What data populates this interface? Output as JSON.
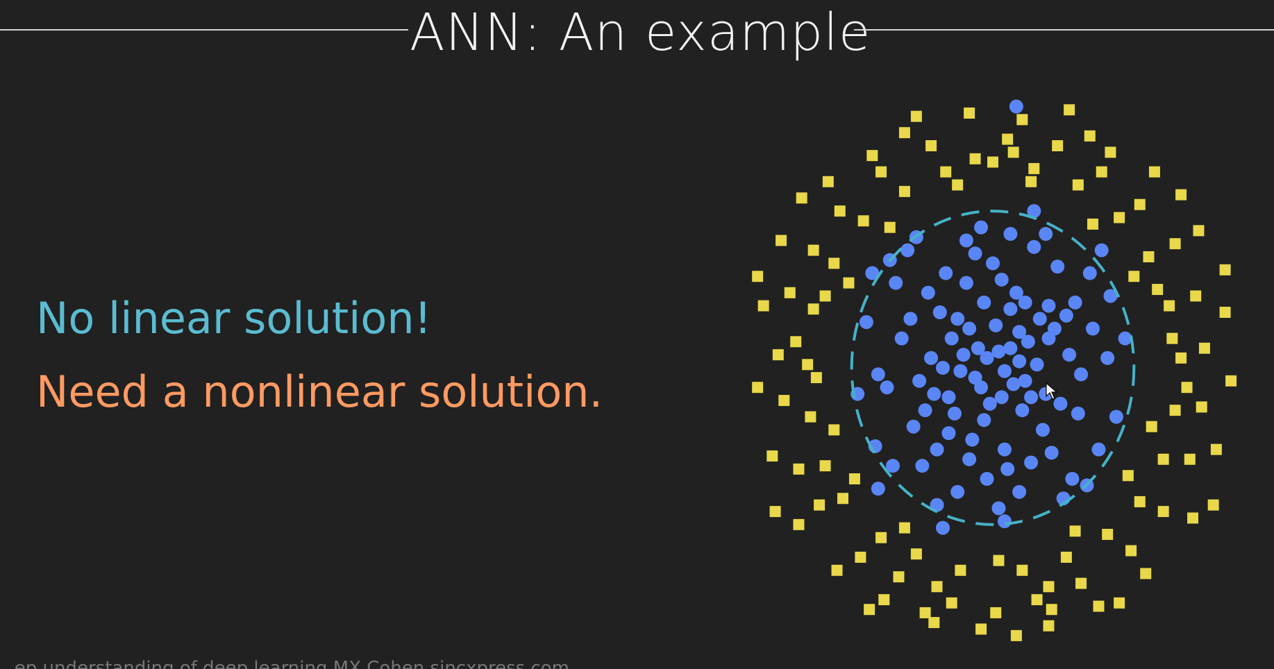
{
  "slide": {
    "title": "ANN: An example",
    "line1": "No linear solution!",
    "line2": "Need a nonlinear solution.",
    "footer": "...ep understanding of deep learning    MX Cohen    sincxpress.com"
  },
  "colors": {
    "background": "#212121",
    "title": "#f2f2f2",
    "line1": "#5bbcd1",
    "line2": "#ff9a62",
    "class_inner": "#5a86f5",
    "class_outer": "#e8d84a",
    "boundary": "#46b2c8"
  },
  "icons": {
    "cursor": "mouse-pointer-icon"
  },
  "chart_data": {
    "type": "scatter",
    "grid": false,
    "legend": "none",
    "xlim": [
      -8.5,
      8.5
    ],
    "ylim": [
      -8.5,
      8.5
    ],
    "boundary": {
      "shape": "circle",
      "center": [
        0,
        0
      ],
      "radius": 4.8,
      "style": "dashed"
    },
    "series": [
      {
        "marker": "circle",
        "color": "#5a86f5",
        "points": [
          [
            0.2,
            0.5
          ],
          [
            -0.8,
            1.2
          ],
          [
            1.1,
            -0.4
          ],
          [
            -1.5,
            -0.9
          ],
          [
            0.6,
            1.8
          ],
          [
            -0.3,
            -1.6
          ],
          [
            1.9,
            0.9
          ],
          [
            -2.1,
            0.3
          ],
          [
            2.3,
            -1.1
          ],
          [
            -0.9,
            2.6
          ],
          [
            0.4,
            -2.5
          ],
          [
            -2.7,
            -1.8
          ],
          [
            2.8,
            2.0
          ],
          [
            -1.6,
            2.9
          ],
          [
            1.3,
            -2.9
          ],
          [
            -3.1,
            0.9
          ],
          [
            3.0,
            -0.2
          ],
          [
            0.0,
            3.2
          ],
          [
            -0.2,
            -3.4
          ],
          [
            -2.4,
            -3.0
          ],
          [
            2.2,
            3.1
          ],
          [
            3.4,
            1.2
          ],
          [
            -3.6,
            -0.6
          ],
          [
            1.4,
            3.7
          ],
          [
            -1.2,
            -3.8
          ],
          [
            3.6,
            -2.5
          ],
          [
            -3.3,
            2.6
          ],
          [
            0.9,
            0.2
          ],
          [
            -0.5,
            0.6
          ],
          [
            0.3,
            -0.9
          ],
          [
            -1.1,
            -0.1
          ],
          [
            1.6,
            1.5
          ],
          [
            -1.8,
            1.7
          ],
          [
            1.7,
            -1.9
          ],
          [
            -0.7,
            -2.2
          ],
          [
            0.8,
            2.3
          ],
          [
            2.6,
            0.4
          ],
          [
            -2.5,
            -0.4
          ],
          [
            0.1,
            1.3
          ],
          [
            -0.3,
            2.0
          ],
          [
            1.0,
            -1.3
          ],
          [
            -1.3,
            -1.4
          ],
          [
            2.0,
            -2.6
          ],
          [
            -2.2,
            2.3
          ],
          [
            2.5,
            1.6
          ],
          [
            -1.9,
            -2.5
          ],
          [
            0.5,
            -3.1
          ],
          [
            -0.6,
            3.5
          ],
          [
            3.9,
            0.3
          ],
          [
            -3.9,
            -0.2
          ],
          [
            0.2,
            -4.3
          ],
          [
            -0.4,
            4.3
          ],
          [
            2.7,
            -3.4
          ],
          [
            -2.9,
            3.6
          ],
          [
            3.3,
            2.9
          ],
          [
            -3.4,
            -3.0
          ],
          [
            1.2,
            0.8
          ],
          [
            -1.0,
            0.4
          ],
          [
            0.7,
            -0.5
          ],
          [
            -0.4,
            -0.6
          ],
          [
            1.5,
            0.1
          ],
          [
            -1.4,
            0.9
          ],
          [
            0.9,
            1.1
          ],
          [
            -0.1,
            -1.1
          ],
          [
            2.1,
            1.2
          ],
          [
            -2.3,
            -1.3
          ],
          [
            1.8,
            -0.8
          ],
          [
            -1.7,
            0.0
          ],
          [
            0.3,
            2.7
          ],
          [
            -0.8,
            -2.8
          ],
          [
            2.9,
            -1.4
          ],
          [
            -2.8,
            1.5
          ],
          [
            1.1,
            2.0
          ],
          [
            -1.5,
            -2.0
          ],
          [
            4.2,
            -1.5
          ],
          [
            -4.3,
            1.4
          ],
          [
            1.8,
            4.1
          ],
          [
            -1.9,
            -4.2
          ],
          [
            4.0,
            2.2
          ],
          [
            -4.0,
            -2.4
          ],
          [
            0.9,
            -3.8
          ],
          [
            -0.9,
            3.9
          ],
          [
            3.2,
            -3.6
          ],
          [
            -3.5,
            3.3
          ],
          [
            0.6,
            4.1
          ],
          [
            2.4,
            -4.0
          ],
          [
            -2.6,
            4.0
          ],
          [
            4.5,
            0.9
          ],
          [
            -4.6,
            -0.8
          ],
          [
            0.4,
            -4.7
          ],
          [
            -3.9,
            -3.7
          ],
          [
            3.7,
            3.6
          ],
          [
            -4.1,
            2.9
          ],
          [
            1.4,
            4.8
          ],
          [
            -1.7,
            -4.9
          ],
          [
            0.8,
            8.0
          ],
          [
            0.4,
            -0.1
          ],
          [
            -0.2,
            0.3
          ],
          [
            0.6,
            0.6
          ],
          [
            -0.6,
            -0.3
          ],
          [
            1.3,
            -0.9
          ],
          [
            -1.2,
            1.5
          ],
          [
            1.9,
            1.9
          ],
          [
            -2.0,
            -0.8
          ]
        ]
      },
      {
        "marker": "square",
        "color": "#e8d84a",
        "points": [
          [
            0.0,
            6.3
          ],
          [
            1.4,
            6.1
          ],
          [
            -1.6,
            6.0
          ],
          [
            2.9,
            5.6
          ],
          [
            -3.0,
            5.4
          ],
          [
            4.3,
            4.6
          ],
          [
            -4.4,
            4.5
          ],
          [
            5.3,
            3.4
          ],
          [
            -5.4,
            3.2
          ],
          [
            6.0,
            1.9
          ],
          [
            -6.1,
            1.8
          ],
          [
            6.4,
            0.3
          ],
          [
            -6.3,
            0.1
          ],
          [
            6.2,
            -1.3
          ],
          [
            -6.2,
            -1.5
          ],
          [
            5.8,
            -2.8
          ],
          [
            -5.7,
            -3.0
          ],
          [
            5.0,
            -4.1
          ],
          [
            -5.1,
            -4.0
          ],
          [
            3.9,
            -5.1
          ],
          [
            -3.8,
            -5.2
          ],
          [
            2.5,
            -5.8
          ],
          [
            -2.6,
            -5.7
          ],
          [
            1.0,
            -6.2
          ],
          [
            -1.1,
            -6.2
          ],
          [
            0.5,
            7.0
          ],
          [
            2.2,
            6.8
          ],
          [
            -2.1,
            6.8
          ],
          [
            3.7,
            6.0
          ],
          [
            -3.8,
            6.0
          ],
          [
            5.0,
            5.0
          ],
          [
            -5.2,
            4.8
          ],
          [
            6.2,
            3.8
          ],
          [
            -6.1,
            3.6
          ],
          [
            6.9,
            2.2
          ],
          [
            -6.9,
            2.3
          ],
          [
            7.2,
            0.6
          ],
          [
            -7.3,
            0.4
          ],
          [
            7.1,
            -1.2
          ],
          [
            -7.1,
            -1.0
          ],
          [
            6.7,
            -2.8
          ],
          [
            -6.6,
            -3.1
          ],
          [
            5.8,
            -4.4
          ],
          [
            -5.9,
            -4.2
          ],
          [
            4.7,
            -5.6
          ],
          [
            -4.5,
            -5.8
          ],
          [
            3.0,
            -6.6
          ],
          [
            -3.2,
            -6.4
          ],
          [
            1.5,
            -7.1
          ],
          [
            -1.4,
            -7.2
          ],
          [
            0.1,
            -7.5
          ],
          [
            1.0,
            7.6
          ],
          [
            -0.8,
            7.8
          ],
          [
            3.3,
            7.1
          ],
          [
            -3.0,
            7.2
          ],
          [
            5.5,
            6.0
          ],
          [
            -5.6,
            5.7
          ],
          [
            7.0,
            4.2
          ],
          [
            -7.2,
            3.9
          ],
          [
            7.9,
            1.7
          ],
          [
            -7.8,
            1.9
          ],
          [
            8.1,
            -0.4
          ],
          [
            -8.0,
            -0.6
          ],
          [
            7.6,
            -2.5
          ],
          [
            -7.5,
            -2.7
          ],
          [
            6.8,
            -4.6
          ],
          [
            -6.6,
            -4.8
          ],
          [
            5.2,
            -6.3
          ],
          [
            -5.3,
            -6.2
          ],
          [
            3.6,
            -7.3
          ],
          [
            -3.7,
            -7.1
          ],
          [
            1.9,
            -7.9
          ],
          [
            -2.0,
            -7.8
          ],
          [
            0.8,
            -8.2
          ],
          [
            -1.2,
            5.6
          ],
          [
            1.3,
            5.7
          ],
          [
            4.8,
            2.8
          ],
          [
            -4.9,
            2.6
          ],
          [
            5.4,
            -1.8
          ],
          [
            -5.4,
            -1.9
          ],
          [
            2.8,
            -5.0
          ],
          [
            -3.0,
            -4.9
          ],
          [
            0.2,
            -5.9
          ],
          [
            -6.5,
            5.2
          ],
          [
            6.4,
            5.3
          ],
          [
            -7.4,
            -4.4
          ],
          [
            7.5,
            -4.2
          ],
          [
            -4.2,
            -7.4
          ],
          [
            4.3,
            -7.2
          ],
          [
            -0.4,
            -8.0
          ],
          [
            7.9,
            3.0
          ],
          [
            -8.0,
            2.8
          ],
          [
            2.6,
            7.9
          ],
          [
            -2.6,
            7.7
          ],
          [
            6.1,
            0.9
          ],
          [
            -6.0,
            -0.3
          ],
          [
            4.6,
            -3.3
          ],
          [
            -4.7,
            -3.4
          ],
          [
            3.4,
            4.4
          ],
          [
            -3.5,
            4.3
          ],
          [
            0.7,
            6.6
          ],
          [
            -0.6,
            6.4
          ],
          [
            6.6,
            -0.6
          ],
          [
            -6.7,
            0.8
          ],
          [
            1.9,
            -6.7
          ],
          [
            -1.9,
            -6.7
          ],
          [
            5.6,
            2.4
          ],
          [
            -5.7,
            2.2
          ],
          [
            2.0,
            -7.4
          ],
          [
            -2.3,
            -7.5
          ],
          [
            4.0,
            6.6
          ],
          [
            -4.1,
            6.5
          ]
        ]
      }
    ]
  }
}
